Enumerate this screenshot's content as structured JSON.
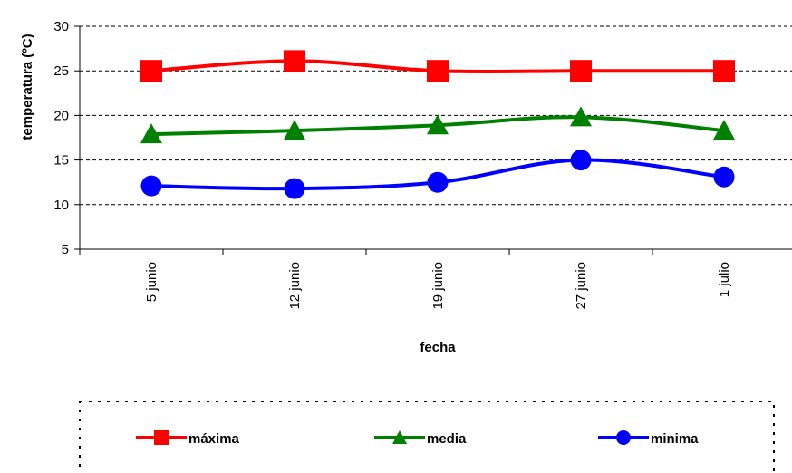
{
  "chart_data": {
    "type": "line",
    "categories": [
      "5 junio",
      "12 junio",
      "19 junio",
      "27 junio",
      "1 julio"
    ],
    "series": [
      {
        "name": "máxima",
        "values": [
          25,
          26.1,
          25,
          25,
          25
        ],
        "color": "#ff0000",
        "marker": "square"
      },
      {
        "name": "media",
        "values": [
          17.9,
          18.3,
          18.9,
          19.8,
          18.3
        ],
        "color": "#008000",
        "marker": "triangle"
      },
      {
        "name": "minima",
        "values": [
          12.1,
          11.8,
          12.5,
          15,
          13.1
        ],
        "color": "#0000ff",
        "marker": "circle"
      }
    ],
    "xlabel": "fecha",
    "ylabel": "temperatura (ºC)",
    "ylim": [
      5,
      30
    ],
    "yticks": [
      5,
      10,
      15,
      20,
      25,
      30
    ],
    "grid": "horizontal dashed",
    "legend": "bottom"
  }
}
